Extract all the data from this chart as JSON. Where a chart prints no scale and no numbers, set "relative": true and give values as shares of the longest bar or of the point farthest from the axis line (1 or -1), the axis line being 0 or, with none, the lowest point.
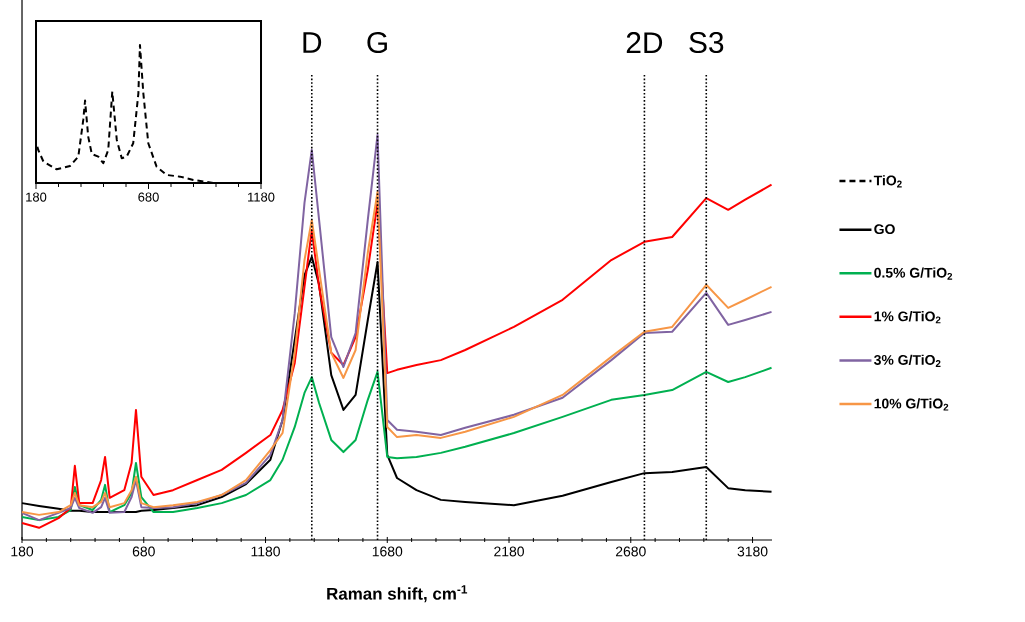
{
  "chart_data": [
    {
      "type": "line",
      "relative": true,
      "xlabel": "Raman shift, cm$^{-1}$",
      "legend": "right",
      "marker": "none",
      "x": [
        180,
        250,
        330,
        380,
        397,
        415,
        470,
        505,
        521,
        540,
        600,
        630,
        648,
        670,
        720,
        800,
        900,
        1000,
        1100,
        1200,
        1250,
        1300,
        1340,
        1370,
        1400,
        1450,
        1500,
        1550,
        1600,
        1640,
        1680,
        1720,
        1800,
        1900,
        2000,
        2200,
        2400,
        2600,
        2736,
        2850,
        2990,
        3080,
        3150,
        3258
      ],
      "xlim": [
        180,
        3260
      ],
      "xticks": [
        180,
        680,
        1180,
        1680,
        2180,
        2680,
        3180
      ],
      "series": [
        {
          "name": "GO",
          "color": "#000000",
          "line_style": "solid",
          "values": [
            0.091,
            0.084,
            0.077,
            0.072,
            0.072,
            0.072,
            0.069,
            0.069,
            0.069,
            0.069,
            0.069,
            0.069,
            0.069,
            0.072,
            0.074,
            0.079,
            0.086,
            0.106,
            0.138,
            0.198,
            0.296,
            0.494,
            0.654,
            0.699,
            0.63,
            0.407,
            0.321,
            0.358,
            0.543,
            0.686,
            0.21,
            0.153,
            0.123,
            0.099,
            0.094,
            0.086,
            0.109,
            0.143,
            0.165,
            0.168,
            0.18,
            0.128,
            0.123,
            0.119
          ]
        },
        {
          "name": "0.5% G/TiO$_{2}$",
          "color": "#00b050",
          "line_style": "solid",
          "values": [
            0.057,
            0.049,
            0.057,
            0.074,
            0.131,
            0.086,
            0.074,
            0.099,
            0.136,
            0.069,
            0.086,
            0.116,
            0.19,
            0.106,
            0.069,
            0.069,
            0.079,
            0.091,
            0.111,
            0.148,
            0.198,
            0.279,
            0.363,
            0.402,
            0.338,
            0.247,
            0.217,
            0.247,
            0.346,
            0.415,
            0.205,
            0.202,
            0.205,
            0.215,
            0.23,
            0.264,
            0.304,
            0.346,
            0.358,
            0.37,
            0.415,
            0.39,
            0.402,
            0.425
          ]
        },
        {
          "name": "1% G/TiO$_{2}$",
          "color": "#ff0000",
          "line_style": "solid",
          "values": [
            0.042,
            0.03,
            0.054,
            0.079,
            0.183,
            0.091,
            0.091,
            0.148,
            0.205,
            0.104,
            0.123,
            0.19,
            0.321,
            0.156,
            0.111,
            0.123,
            0.148,
            0.173,
            0.215,
            0.259,
            0.321,
            0.437,
            0.625,
            0.765,
            0.625,
            0.462,
            0.432,
            0.501,
            0.667,
            0.832,
            0.412,
            0.42,
            0.432,
            0.444,
            0.469,
            0.526,
            0.593,
            0.691,
            0.736,
            0.748,
            0.844,
            0.815,
            0.84,
            0.877
          ]
        },
        {
          "name": "3% G/TiO$_{2}$",
          "color": "#8064a2",
          "line_style": "solid",
          "values": [
            0.067,
            0.049,
            0.067,
            0.079,
            0.104,
            0.079,
            0.067,
            0.081,
            0.104,
            0.067,
            0.069,
            0.106,
            0.148,
            0.081,
            0.079,
            0.081,
            0.091,
            0.111,
            0.141,
            0.21,
            0.296,
            0.56,
            0.832,
            0.963,
            0.79,
            0.501,
            0.427,
            0.511,
            0.79,
            1,
            0.296,
            0.272,
            0.267,
            0.259,
            0.277,
            0.309,
            0.351,
            0.444,
            0.511,
            0.514,
            0.61,
            0.531,
            0.543,
            0.563
          ]
        },
        {
          "name": "10% G/TiO$_{2}$",
          "color": "#f79646",
          "line_style": "solid",
          "values": [
            0.069,
            0.062,
            0.069,
            0.086,
            0.116,
            0.086,
            0.081,
            0.094,
            0.116,
            0.081,
            0.091,
            0.123,
            0.156,
            0.091,
            0.081,
            0.086,
            0.094,
            0.111,
            0.148,
            0.222,
            0.264,
            0.462,
            0.691,
            0.79,
            0.667,
            0.462,
            0.4,
            0.469,
            0.709,
            0.859,
            0.279,
            0.254,
            0.259,
            0.252,
            0.267,
            0.304,
            0.358,
            0.452,
            0.514,
            0.526,
            0.63,
            0.573,
            0.593,
            0.625
          ]
        }
      ],
      "ref_lines": [
        {
          "axis": "x",
          "value": 1370,
          "label": "D",
          "line_style": "dotted"
        },
        {
          "axis": "x",
          "value": 1640,
          "label": "G",
          "line_style": "dotted"
        },
        {
          "axis": "x",
          "value": 2736,
          "label": "2D",
          "line_style": "dotted"
        },
        {
          "axis": "x",
          "value": 2990,
          "label": "S3",
          "line_style": "dotted"
        }
      ]
    },
    {
      "type": "line",
      "relative": true,
      "legend": "right",
      "marker": "none",
      "x": [
        186,
        190,
        213,
        272,
        331,
        368,
        390,
        398,
        412,
        428,
        457,
        479,
        501,
        519,
        539,
        561,
        583,
        612,
        635,
        642,
        657,
        679,
        716,
        761,
        820,
        879,
        968,
        1057,
        1161
      ],
      "xlim": [
        180,
        1180
      ],
      "xticks": [
        180,
        680,
        1180
      ],
      "series": [
        {
          "name": "TiO$_{2}$",
          "color": "#000000",
          "line_style": "dashed",
          "values": [
            0.263,
            0.239,
            0.155,
            0.099,
            0.123,
            0.191,
            0.457,
            0.597,
            0.336,
            0.21,
            0.191,
            0.143,
            0.239,
            0.662,
            0.312,
            0.179,
            0.191,
            0.288,
            0.65,
            1,
            0.65,
            0.288,
            0.118,
            0.058,
            0.046,
            0.022,
            0,
            0,
            0
          ]
        }
      ]
    }
  ]
}
